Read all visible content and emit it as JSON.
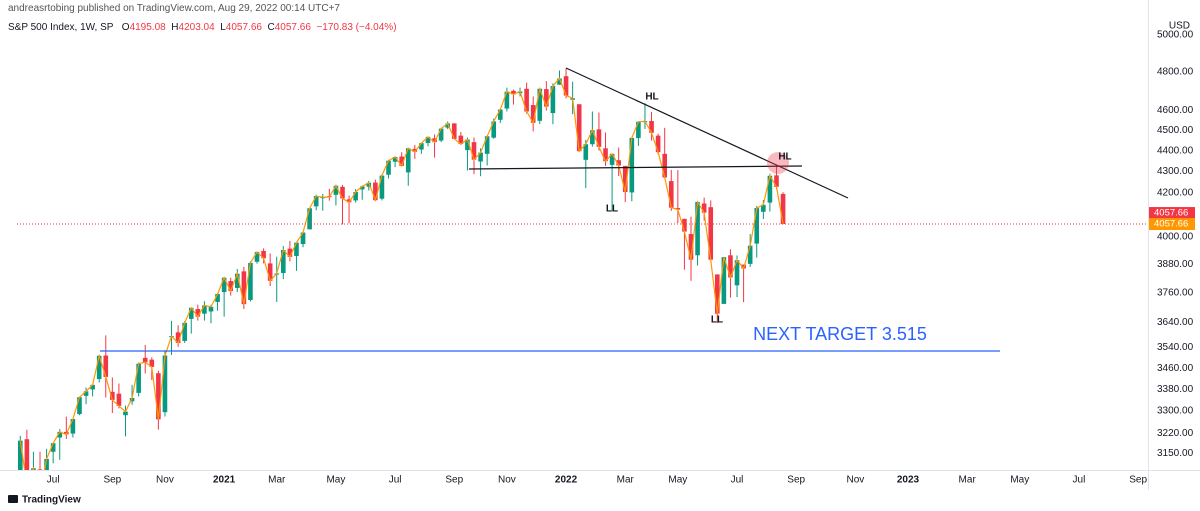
{
  "header": {
    "publisher": "andreasrtobing published on TradingView.com, Aug 29, 2022 00:14 UTC+7",
    "symbol": "S&P 500 Index, 1W, SP",
    "ohlc_letters": [
      "O",
      "H",
      "L",
      "C"
    ],
    "change": "−170.83 (−4.04%)",
    "currency": "USD",
    "brand": "TradingView"
  },
  "chart_data": {
    "type": "candlestick",
    "categories": [
      null,
      null,
      null,
      null,
      null,
      "Jul",
      null,
      null,
      null,
      null,
      null,
      null,
      null,
      null,
      "Sep",
      null,
      null,
      null,
      null,
      null,
      null,
      null,
      "Nov",
      null,
      null,
      null,
      null,
      null,
      null,
      null,
      null,
      "2021",
      null,
      null,
      null,
      null,
      null,
      null,
      null,
      "Mar",
      null,
      null,
      null,
      null,
      null,
      null,
      null,
      null,
      "May",
      null,
      null,
      null,
      null,
      null,
      null,
      null,
      null,
      "Jul",
      null,
      null,
      null,
      null,
      null,
      null,
      null,
      null,
      "Sep",
      null,
      null,
      null,
      null,
      null,
      null,
      null,
      "Nov",
      null,
      null,
      null,
      null,
      null,
      null,
      null,
      null,
      "2022",
      null,
      null,
      null,
      null,
      null,
      null,
      null,
      null,
      "Mar",
      null,
      null,
      null,
      null,
      null,
      null,
      null,
      "May",
      null,
      null,
      null,
      null,
      null,
      null,
      null,
      null,
      "Jul",
      null,
      null,
      null,
      null,
      null,
      null,
      null,
      null,
      "Sep",
      null,
      null,
      null,
      null,
      null,
      null,
      null,
      null,
      "Nov",
      null,
      null,
      null,
      null,
      null,
      null,
      null,
      "2023",
      null,
      null,
      null,
      null,
      null,
      null,
      null,
      null,
      "Mar",
      null,
      null,
      null,
      null,
      null,
      null,
      null,
      "May",
      null,
      null,
      null,
      null,
      null,
      null,
      null,
      null,
      "Jul",
      null,
      null,
      null,
      null,
      null,
      null,
      null,
      null,
      "Sep",
      null
    ],
    "open": [
      3038,
      3199,
      3033,
      3094,
      3018,
      3155,
      3205,
      3225,
      3219,
      3289,
      3356,
      3380,
      3419,
      3509,
      3371,
      3364,
      3285,
      3336,
      3367,
      3500,
      3493,
      3441,
      3296,
      3583,
      3600,
      3566,
      3654,
      3694,
      3675,
      3684,
      3723,
      3764,
      3810,
      3781,
      3851,
      3731,
      3892,
      3939,
      3885,
      3842,
      3844,
      3949,
      3917,
      3969,
      4034,
      4138,
      4179,
      4185,
      4191,
      4228,
      4170,
      4165,
      4216,
      4229,
      4248,
      4173,
      4285,
      4347,
      4372,
      4296,
      4409,
      4406,
      4438,
      4461,
      4450,
      4514,
      4535,
      4474,
      4403,
      4442,
      4348,
      4385,
      4464,
      4553,
      4610,
      4701,
      4689,
      4712,
      4628,
      4548,
      4710,
      4587,
      4733,
      4778,
      4655,
      4632,
      4356,
      4432,
      4505,
      4412,
      4332,
      4354,
      4327,
      4202,
      4462,
      4541,
      4547,
      4474,
      4385,
      4255,
      4130,
      4081,
      4013,
      3920,
      4151,
      4134,
      3838,
      3715,
      3920,
      3792,
      3880,
      3883,
      3971,
      4113,
      4155,
      4282,
      4195.08,
      null,
      null,
      null,
      null,
      null,
      null,
      null,
      null,
      null,
      null,
      null,
      null,
      null,
      null,
      null,
      null,
      null,
      null,
      null,
      null,
      null,
      null,
      null,
      null,
      null,
      null,
      null,
      null,
      null,
      null,
      null,
      null,
      null,
      null,
      null,
      null,
      null,
      null,
      null,
      null,
      null,
      null,
      null,
      null,
      null,
      null,
      null,
      null,
      null,
      null,
      null,
      null,
      null,
      null,
      null
    ],
    "high": [
      3211,
      3233,
      3155,
      3155,
      3165,
      3185,
      3235,
      3280,
      3272,
      3352,
      3387,
      3399,
      3509,
      3588,
      3425,
      3402,
      3320,
      3397,
      3482,
      3550,
      3502,
      3451,
      3529,
      3646,
      3628,
      3645,
      3699,
      3712,
      3726,
      3711,
      3760,
      3827,
      3824,
      3861,
      3870,
      3894,
      3937,
      3950,
      3928,
      3914,
      3960,
      3983,
      3978,
      4020,
      4129,
      4191,
      4195,
      4219,
      4238,
      4237,
      4188,
      4218,
      4234,
      4256,
      4262,
      4287,
      4356,
      4372,
      4393,
      4415,
      4429,
      4440,
      4468,
      4480,
      4513,
      4545,
      4536,
      4492,
      4465,
      4465,
      4412,
      4475,
      4559,
      4608,
      4718,
      4708,
      4718,
      4744,
      4672,
      4713,
      4752,
      4740,
      4808,
      4819,
      4749,
      4632,
      4453,
      4595,
      4590,
      4490,
      4385,
      4416,
      4327,
      4465,
      4546,
      4637,
      4593,
      4484,
      4513,
      4308,
      4307,
      4082,
      4091,
      4158,
      4178,
      4165,
      3838,
      3913,
      3946,
      3919,
      3880,
      4013,
      4140,
      4167,
      4290,
      4325,
      4203.04,
      null,
      null,
      null,
      null,
      null,
      null,
      null,
      null,
      null,
      null,
      null,
      null,
      null,
      null,
      null,
      null,
      null,
      null,
      null,
      null,
      null,
      null,
      null,
      null,
      null,
      null,
      null,
      null,
      null,
      null,
      null,
      null,
      null,
      null,
      null,
      null,
      null,
      null,
      null,
      null,
      null,
      null,
      null,
      null,
      null,
      null,
      null,
      null,
      null,
      null,
      null,
      null,
      null,
      null,
      null
    ],
    "low": [
      3025,
      2936,
      2965,
      3004,
      2985,
      3115,
      3127,
      3200,
      3205,
      3285,
      3325,
      3354,
      3406,
      3350,
      3293,
      3310,
      3209,
      3323,
      3354,
      3440,
      3415,
      3233,
      3280,
      3511,
      3543,
      3558,
      3595,
      3647,
      3647,
      3636,
      3687,
      3663,
      3749,
      3764,
      3694,
      3725,
      3884,
      3885,
      3789,
      3723,
      3818,
      3894,
      3853,
      3955,
      4034,
      4120,
      4118,
      4164,
      4142,
      4056,
      4061,
      4155,
      4168,
      4211,
      4164,
      4165,
      4267,
      4321,
      4327,
      4233,
      4360,
      4385,
      4422,
      4367,
      4442,
      4506,
      4457,
      4428,
      4305,
      4288,
      4278,
      4329,
      4459,
      4537,
      4595,
      4630,
      4672,
      4585,
      4495,
      4532,
      4600,
      4531,
      4733,
      4662,
      4582,
      4395,
      4222,
      4420,
      4401,
      4327,
      4115,
      4279,
      4157,
      4161,
      4424,
      4507,
      4450,
      4381,
      4269,
      4117,
      4062,
      3858,
      3811,
      3876,
      4073,
      3900,
      3637,
      3715,
      3741,
      3743,
      3722,
      3870,
      3910,
      4080,
      4114,
      4217,
      4057.66,
      null,
      null,
      null,
      null,
      null,
      null,
      null,
      null,
      null,
      null,
      null,
      null,
      null,
      null,
      null,
      null,
      null,
      null,
      null,
      null,
      null,
      null,
      null,
      null,
      null,
      null,
      null,
      null,
      null,
      null,
      null,
      null,
      null,
      null,
      null,
      null,
      null,
      null,
      null,
      null,
      null,
      null,
      null,
      null,
      null,
      null,
      null,
      null,
      null,
      null,
      null,
      null,
      null,
      null,
      null
    ],
    "close": [
      3194,
      3041,
      3098,
      3009,
      3130,
      3185,
      3225,
      3216,
      3271,
      3351,
      3373,
      3397,
      3508,
      3427,
      3341,
      3319,
      3298,
      3348,
      3477,
      3483,
      3465,
      3270,
      3509,
      3585,
      3558,
      3638,
      3699,
      3663,
      3709,
      3703,
      3756,
      3824,
      3768,
      3841,
      3714,
      3887,
      3934,
      3907,
      3811,
      3842,
      3943,
      3913,
      3975,
      4020,
      4129,
      4185,
      4180,
      4181,
      4233,
      4174,
      4156,
      4204,
      4230,
      4247,
      4166,
      4281,
      4352,
      4370,
      4327,
      4412,
      4395,
      4437,
      4468,
      4442,
      4509,
      4535,
      4458,
      4433,
      4455,
      4357,
      4391,
      4471,
      4545,
      4605,
      4697,
      4683,
      4698,
      4595,
      4538,
      4712,
      4620,
      4726,
      4766,
      4677,
      4663,
      4398,
      4432,
      4501,
      4419,
      4349,
      4385,
      4329,
      4204,
      4463,
      4543,
      4546,
      4488,
      4393,
      4272,
      4132,
      4123,
      4024,
      3901,
      4158,
      4109,
      3901,
      3675,
      3912,
      3825,
      3899,
      3863,
      3962,
      4130,
      4145,
      4280,
      4228,
      4057.66,
      null,
      null,
      null,
      null,
      null,
      null,
      null,
      null,
      null,
      null,
      null,
      null,
      null,
      null,
      null,
      null,
      null,
      null,
      null,
      null,
      null,
      null,
      null,
      null,
      null,
      null,
      null,
      null,
      null,
      null,
      null,
      null,
      null,
      null,
      null,
      null,
      null,
      null,
      null,
      null,
      null,
      null,
      null,
      null,
      null,
      null,
      null,
      null,
      null,
      null,
      null,
      null,
      null,
      null,
      null
    ],
    "up_color": "#089981",
    "down_color": "#f23645",
    "line_color": "#ff9800",
    "log_scale": true,
    "ylim": [
      3092,
      5084
    ],
    "yticks": [
      {
        "value": 5000,
        "label": "5000.00"
      },
      {
        "value": 4800,
        "label": "4800.00"
      },
      {
        "value": 4600,
        "label": "4600.00"
      },
      {
        "value": 4500,
        "label": "4500.00"
      },
      {
        "value": 4400,
        "label": "4400.00"
      },
      {
        "value": 4300,
        "label": "4300.00"
      },
      {
        "value": 4200,
        "label": "4200.00"
      },
      {
        "value": 4000,
        "label": "4000.00"
      },
      {
        "value": 3880,
        "label": "3880.00"
      },
      {
        "value": 3760,
        "label": "3760.00"
      },
      {
        "value": 3640,
        "label": "3640.00"
      },
      {
        "value": 3540,
        "label": "3540.00"
      },
      {
        "value": 3460,
        "label": "3460.00"
      },
      {
        "value": 3380,
        "label": "3380.00"
      },
      {
        "value": 3300,
        "label": "3300.00"
      },
      {
        "value": 3220,
        "label": "3220.00"
      },
      {
        "value": 3150,
        "label": "3150.00"
      }
    ],
    "annotations": {
      "target": "NEXT TARGET 3.515",
      "labels": [
        "HL",
        "HL",
        "LL",
        "LL"
      ]
    }
  }
}
